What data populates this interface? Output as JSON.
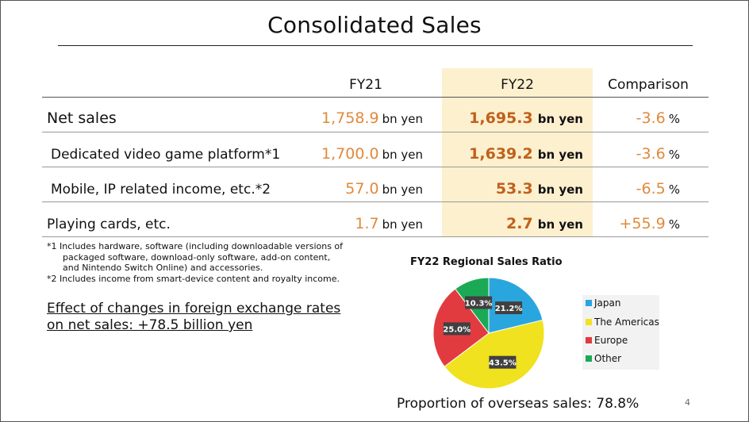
{
  "title": "Consolidated Sales",
  "columns": {
    "fy21": "FY21",
    "fy22": "FY22",
    "comparison": "Comparison"
  },
  "rows": [
    {
      "label": "Net sales",
      "fy21": "1,758.9",
      "fy21_unit": "bn yen",
      "fy22": "1,695.3",
      "fy22_unit": "bn yen",
      "comparison": "-3.6",
      "comparison_unit": "%"
    },
    {
      "label": "Dedicated video game platform*1",
      "fy21": "1,700.0",
      "fy21_unit": "bn yen",
      "fy22": "1,639.2",
      "fy22_unit": "bn yen",
      "comparison": "-3.6",
      "comparison_unit": "%"
    },
    {
      "label": "Mobile, IP related income, etc.*2",
      "fy21": "57.0",
      "fy21_unit": "bn yen",
      "fy22": "53.3",
      "fy22_unit": "bn yen",
      "comparison": "-6.5",
      "comparison_unit": "%"
    },
    {
      "label": "Playing cards, etc.",
      "fy21": "1.7",
      "fy21_unit": "bn yen",
      "fy22": "2.7",
      "fy22_unit": "bn yen",
      "comparison": "+55.9",
      "comparison_unit": "%"
    }
  ],
  "notes": {
    "n1_line1": "*1 Includes hardware, software (including downloadable versions of",
    "n1_line2": "packaged software, download-only software, add-on content,",
    "n1_line3": "and Nintendo Switch Online) and accessories.",
    "n2": "*2 Includes income from smart-device content and royalty income."
  },
  "effect": {
    "line1": "Effect of changes in foreign exchange rates",
    "line2": "on net sales: +78.5 billion yen"
  },
  "chart_data": {
    "type": "pie",
    "title": "FY22 Regional Sales Ratio",
    "categories": [
      "Japan",
      "The Americas",
      "Europe",
      "Other"
    ],
    "values": [
      21.2,
      43.5,
      25.0,
      10.3
    ],
    "labels": [
      "21.2%",
      "43.5%",
      "25.0%",
      "10.3%"
    ],
    "colors": [
      "#2aa6de",
      "#f0e21e",
      "#e23b3f",
      "#1aaa55"
    ],
    "legend_position": "right"
  },
  "proportion": "Proportion of overseas sales: 78.8%",
  "page_number": "4"
}
